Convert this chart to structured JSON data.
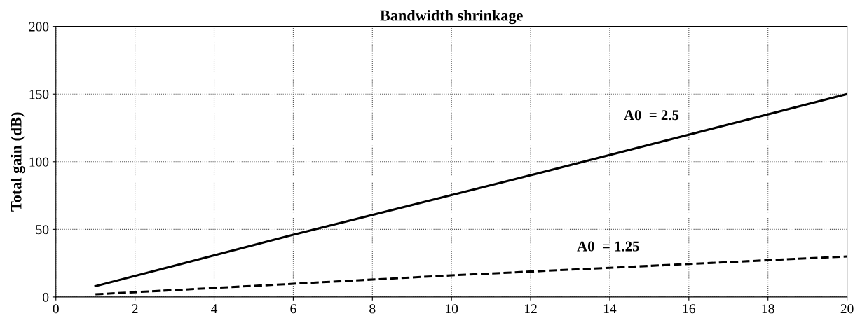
{
  "chart_data": {
    "type": "line",
    "title": "Bandwidth shrinkage",
    "ylabel": "Total gain (dB)",
    "series": [
      {
        "name": "A0  = 2.5",
        "color": "#000000",
        "line_style": "solid",
        "x": [
          1,
          6,
          12,
          20
        ],
        "values": [
          8,
          46,
          90,
          150
        ]
      },
      {
        "name": "A0  = 1.25",
        "color": "#000000",
        "line_style": "dashed",
        "x": [
          1,
          10,
          20
        ],
        "values": [
          2,
          16,
          30
        ]
      }
    ],
    "xlim": [
      0,
      20
    ],
    "xticks": [
      0,
      2,
      4,
      6,
      8,
      10,
      12,
      14,
      16,
      18,
      20
    ],
    "ylim": [
      0,
      200
    ],
    "yticks": [
      0,
      50,
      100,
      150,
      200
    ],
    "grid": true,
    "marker": "none"
  }
}
